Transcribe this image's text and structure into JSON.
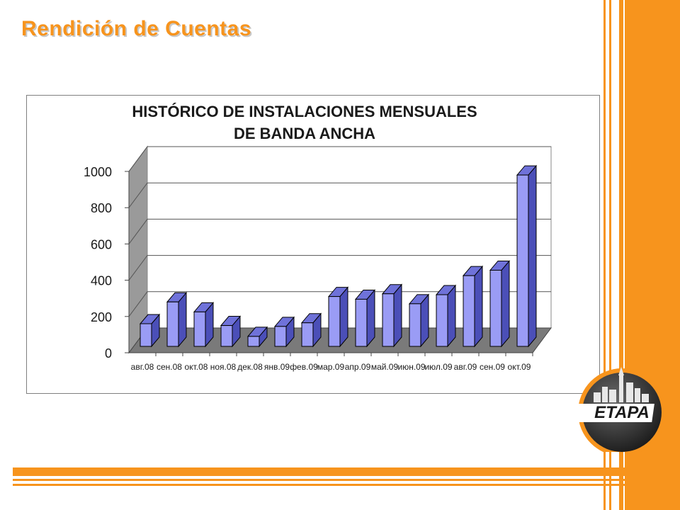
{
  "slide": {
    "title": "Rendición de Cuentas"
  },
  "logo": {
    "text": "ETAPA"
  },
  "colors": {
    "accent_orange": "#f7941d",
    "bar_face": "#9a9cf5",
    "bar_side": "#4b4fb8",
    "floor": "#7a7a7a",
    "wall": "#9a9a9a"
  },
  "chart_data": {
    "type": "bar",
    "title_line1": "HISTÓRICO DE INSTALACIONES MENSUALES",
    "title_line2": "DE BANDA ANCHA",
    "xlabel": "",
    "ylabel": "",
    "ylim": [
      0,
      1000
    ],
    "yticks": [
      "0",
      "200",
      "400",
      "600",
      "800",
      "1000"
    ],
    "grid": true,
    "legend": "none",
    "three_d": true,
    "categories": [
      "авг.08",
      "сен.08",
      "окт.08",
      "ноя.08",
      "дек.08",
      "янв.09",
      "фев.09",
      "мар.09",
      "апр.09",
      "май.09",
      "июн.09",
      "июл.09",
      "авг.09",
      "сен.09",
      "окт.09"
    ],
    "values": [
      125,
      245,
      190,
      115,
      55,
      110,
      130,
      275,
      260,
      290,
      235,
      285,
      390,
      420,
      945
    ]
  }
}
